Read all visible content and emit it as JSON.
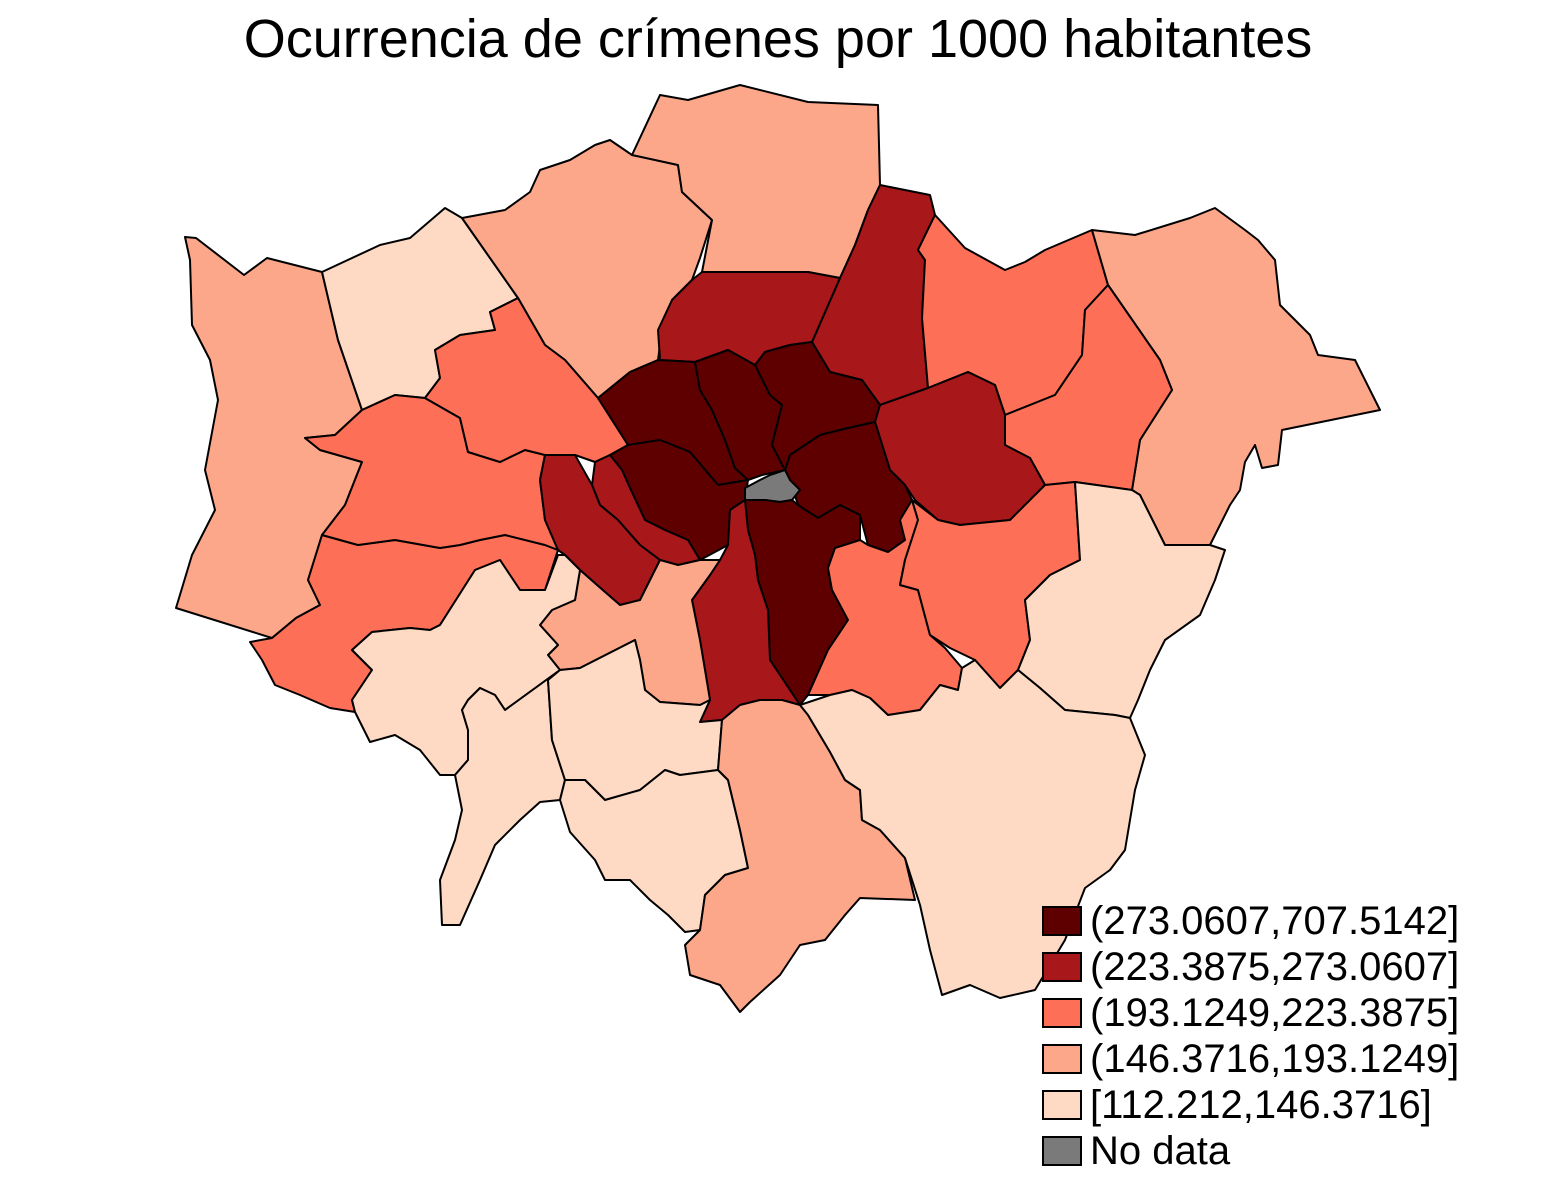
{
  "title": "Ocurrencia de crímenes por 1000 habitantes",
  "legend": [
    {
      "label": "(273.0607,707.5142]",
      "color": "#5e0000"
    },
    {
      "label": "(223.3875,273.0607]",
      "color": "#a8171a"
    },
    {
      "label": "(193.1249,223.3875]",
      "color": "#fe6f57"
    },
    {
      "label": "(146.3716,193.1249]",
      "color": "#fca78a"
    },
    {
      "label": "[112.212,146.3716]",
      "color": "#fed9c3"
    },
    {
      "label": "No data",
      "color": "#7a7a7a"
    }
  ],
  "border_color": "#000000"
}
